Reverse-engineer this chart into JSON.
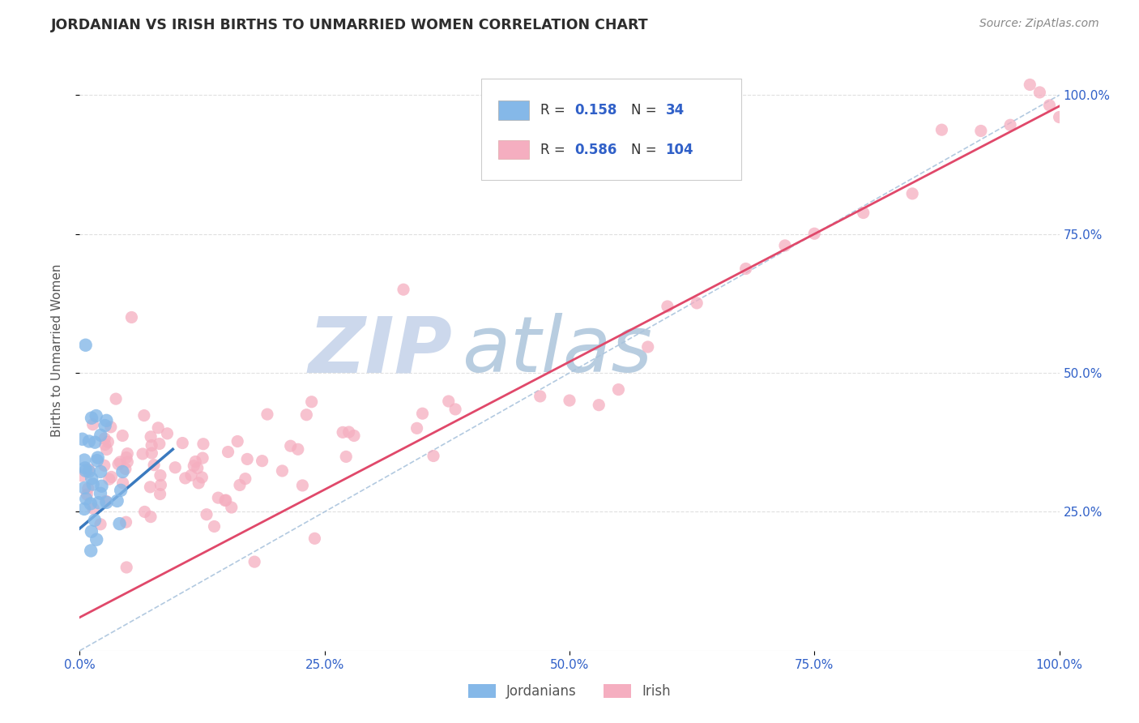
{
  "title": "JORDANIAN VS IRISH BIRTHS TO UNMARRIED WOMEN CORRELATION CHART",
  "source": "Source: ZipAtlas.com",
  "ylabel": "Births to Unmarried Women",
  "xlim": [
    0.0,
    1.0
  ],
  "ylim": [
    0.0,
    1.08
  ],
  "x_tick_labels": [
    "0.0%",
    "25.0%",
    "50.0%",
    "75.0%",
    "100.0%"
  ],
  "x_tick_positions": [
    0.0,
    0.25,
    0.5,
    0.75,
    1.0
  ],
  "y_tick_labels": [
    "25.0%",
    "50.0%",
    "75.0%",
    "100.0%"
  ],
  "y_tick_positions": [
    0.25,
    0.5,
    0.75,
    1.0
  ],
  "jordanian_R": 0.158,
  "jordanian_N": 34,
  "irish_R": 0.586,
  "irish_N": 104,
  "jordanian_color": "#85b8e8",
  "irish_color": "#f5aec0",
  "jordanian_line_color": "#3a7abf",
  "irish_line_color": "#e0486a",
  "diagonal_line_color": "#aac4dd",
  "background_color": "#ffffff",
  "grid_color": "#e0e0e0",
  "title_color": "#2d2d2d",
  "label_color": "#555555",
  "blue_text_color": "#3060c8",
  "watermark_zip_color": "#ccd8ec",
  "watermark_atlas_color": "#b8cde0"
}
